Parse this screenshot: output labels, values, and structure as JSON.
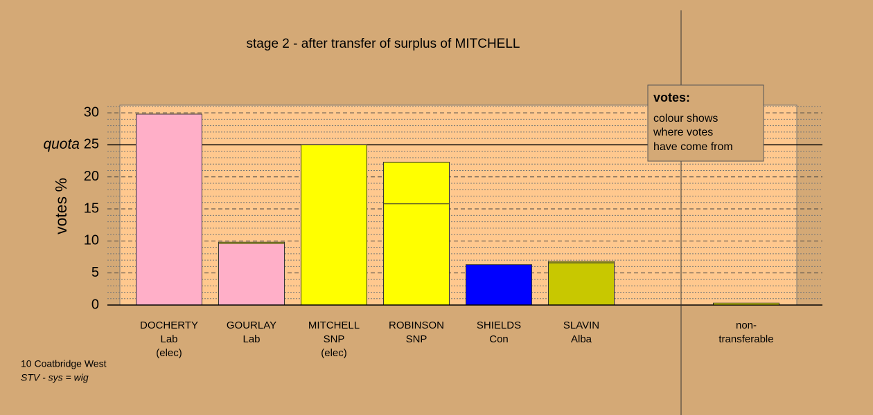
{
  "chart_data": {
    "type": "bar",
    "title": "stage 2 - after transfer of surplus of MITCHELL",
    "y_label": "votes %",
    "quota": 25,
    "quota_label": "quota",
    "categories": [
      [
        "DOCHERTY",
        "Lab",
        "(elec)"
      ],
      [
        "GOURLAY",
        "Lab"
      ],
      [
        "MITCHELL",
        "SNP",
        "(elec)"
      ],
      [
        "ROBINSON",
        "SNP"
      ],
      [
        "SHIELDS",
        "Con"
      ],
      [
        "SLAVIN",
        "Alba"
      ],
      null,
      [
        "non-",
        "transferable"
      ]
    ],
    "series": [
      {
        "colors": [
          "#ffafc8",
          "#ffafc8",
          "#ffff00",
          "#ffff00",
          "#0000ff",
          "#c8c800",
          null,
          null
        ],
        "values": [
          29.8,
          9.6,
          25,
          15.8,
          6.3,
          6.6,
          null,
          null
        ]
      },
      {
        "color": "#ffff00",
        "values": [
          null,
          0.2,
          null,
          6.5,
          null,
          0.2,
          null,
          0.3
        ]
      }
    ],
    "ylim": [
      0,
      31.2
    ],
    "yticks": [
      0,
      5,
      10,
      15,
      20,
      25,
      30
    ],
    "minor_yticks": [
      1,
      2,
      3,
      4,
      6,
      7,
      8,
      9,
      11,
      12,
      13,
      14,
      16,
      17,
      18,
      19,
      21,
      22,
      23,
      24,
      26,
      27,
      28,
      29,
      31
    ],
    "legend": {
      "title": "votes:",
      "lines": [
        "colour shows",
        "where votes",
        "have come from"
      ]
    },
    "footnotes": [
      "10 Coatbridge West",
      "STV - sys = wig"
    ]
  }
}
